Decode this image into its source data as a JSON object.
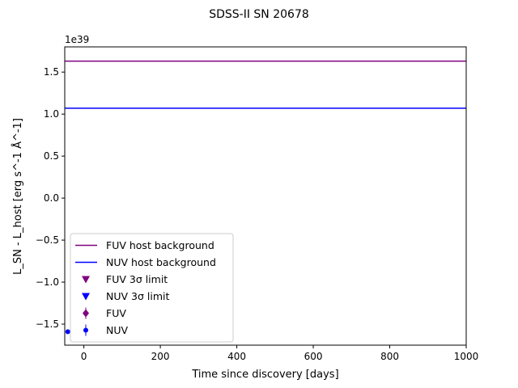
{
  "chart_data": {
    "type": "line",
    "title": "SDSS-II SN 20678",
    "xlabel": "Time since discovery [days]",
    "ylabel": "L_SN - L_host [erg s^-1 Å^-1]",
    "offset_text": "1e39",
    "xlim": [
      -50,
      1000
    ],
    "ylim": [
      -1.75,
      1.8
    ],
    "xticks": [
      0,
      200,
      400,
      600,
      800,
      1000
    ],
    "xtick_labels": [
      "0",
      "200",
      "400",
      "600",
      "800",
      "1000"
    ],
    "yticks": [
      -1.5,
      -1.0,
      -0.5,
      0.0,
      0.5,
      1.0,
      1.5
    ],
    "ytick_labels": [
      "−1.5",
      "−1.0",
      "−0.5",
      "0.0",
      "0.5",
      "1.0",
      "1.5"
    ],
    "grid": false,
    "legend_position": "lower-left",
    "host_background": [
      {
        "name": "FUV host background",
        "y": 1.63,
        "color": "#800080"
      },
      {
        "name": "NUV host background",
        "y": 1.07,
        "color": "#0000ff"
      }
    ],
    "legend_entries": [
      {
        "label": "FUV host background",
        "marker": "line",
        "color": "#800080"
      },
      {
        "label": "NUV host background",
        "marker": "line",
        "color": "#0000ff"
      },
      {
        "label": "FUV 3σ limit",
        "marker": "triangle-down",
        "color": "#800080"
      },
      {
        "label": "NUV 3σ limit",
        "marker": "triangle-down",
        "color": "#0000ff"
      },
      {
        "label": "FUV",
        "marker": "diamond-errorbar",
        "color": "#800080"
      },
      {
        "label": "NUV",
        "marker": "circle-errorbar",
        "color": "#0000ff"
      }
    ],
    "series": [
      {
        "name": "NUV",
        "marker": "circle",
        "color": "#0000ff",
        "points": [
          {
            "x": -42,
            "y": -1.59,
            "yerr": 0.02
          }
        ]
      }
    ]
  }
}
